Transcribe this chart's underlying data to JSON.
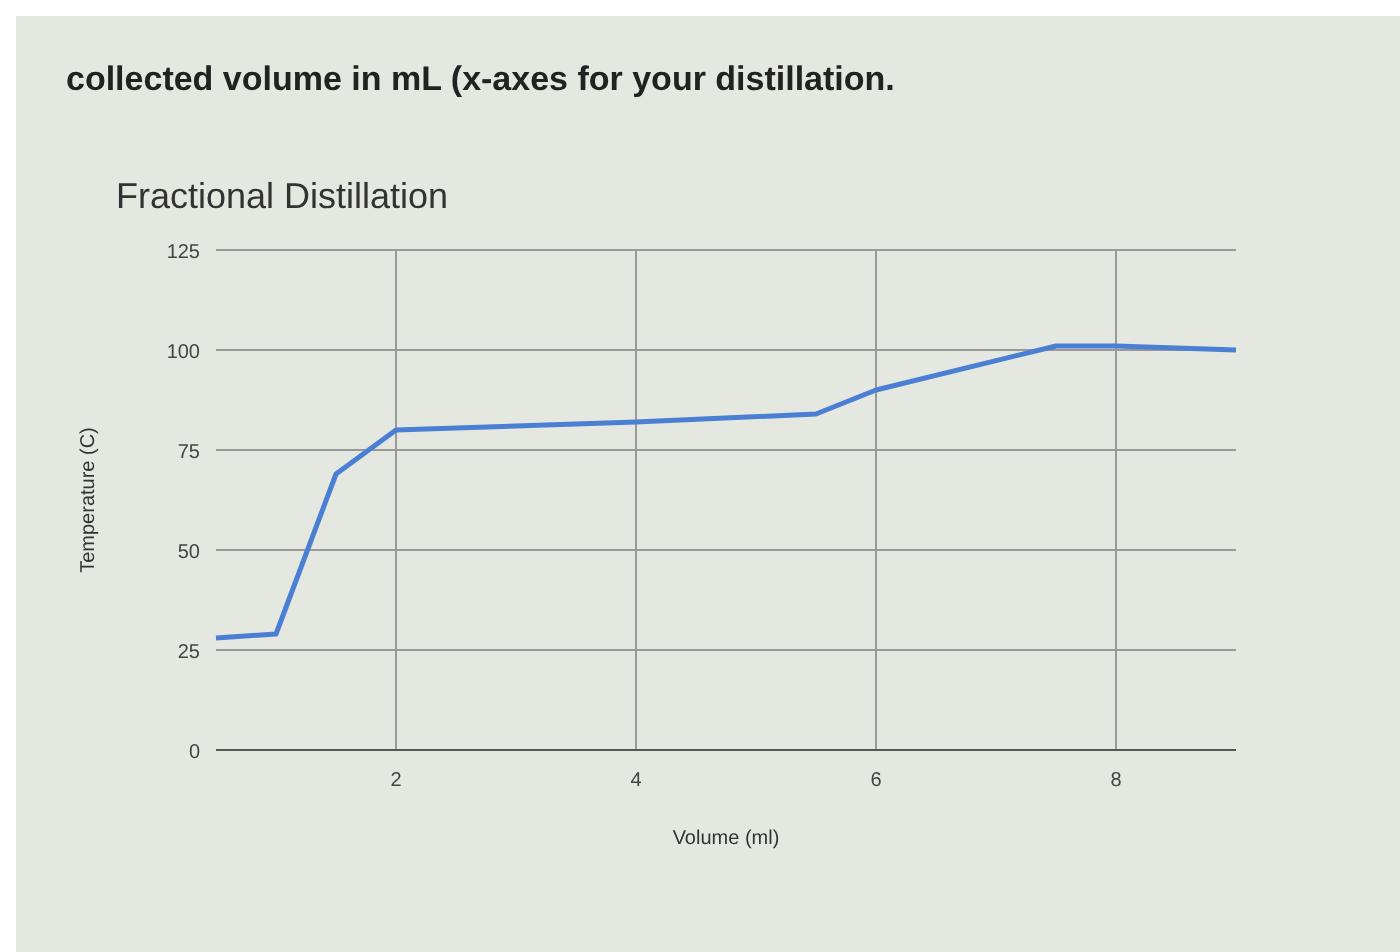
{
  "chart_data": {
    "type": "line",
    "title": "Fractional Distillation",
    "xlabel": "Volume (ml)",
    "ylabel": "Temperature (C)",
    "annotations": [
      "collected volume in mL (x-axes for your distillation."
    ],
    "x": [
      0.5,
      1,
      1.5,
      2,
      4,
      5.5,
      6,
      7.5,
      8,
      9
    ],
    "series": [
      {
        "color": "#4a7fd4",
        "values": [
          28,
          29,
          69,
          80,
          82,
          84,
          90,
          101,
          101,
          100
        ]
      }
    ],
    "xlim": [
      0.5,
      9
    ],
    "xticks": [
      2,
      4,
      6,
      8
    ],
    "ylim": [
      0,
      125
    ],
    "yticks": [
      0,
      25,
      50,
      75,
      100,
      125
    ],
    "grid": true,
    "marker": "none",
    "line_style": "solid"
  }
}
